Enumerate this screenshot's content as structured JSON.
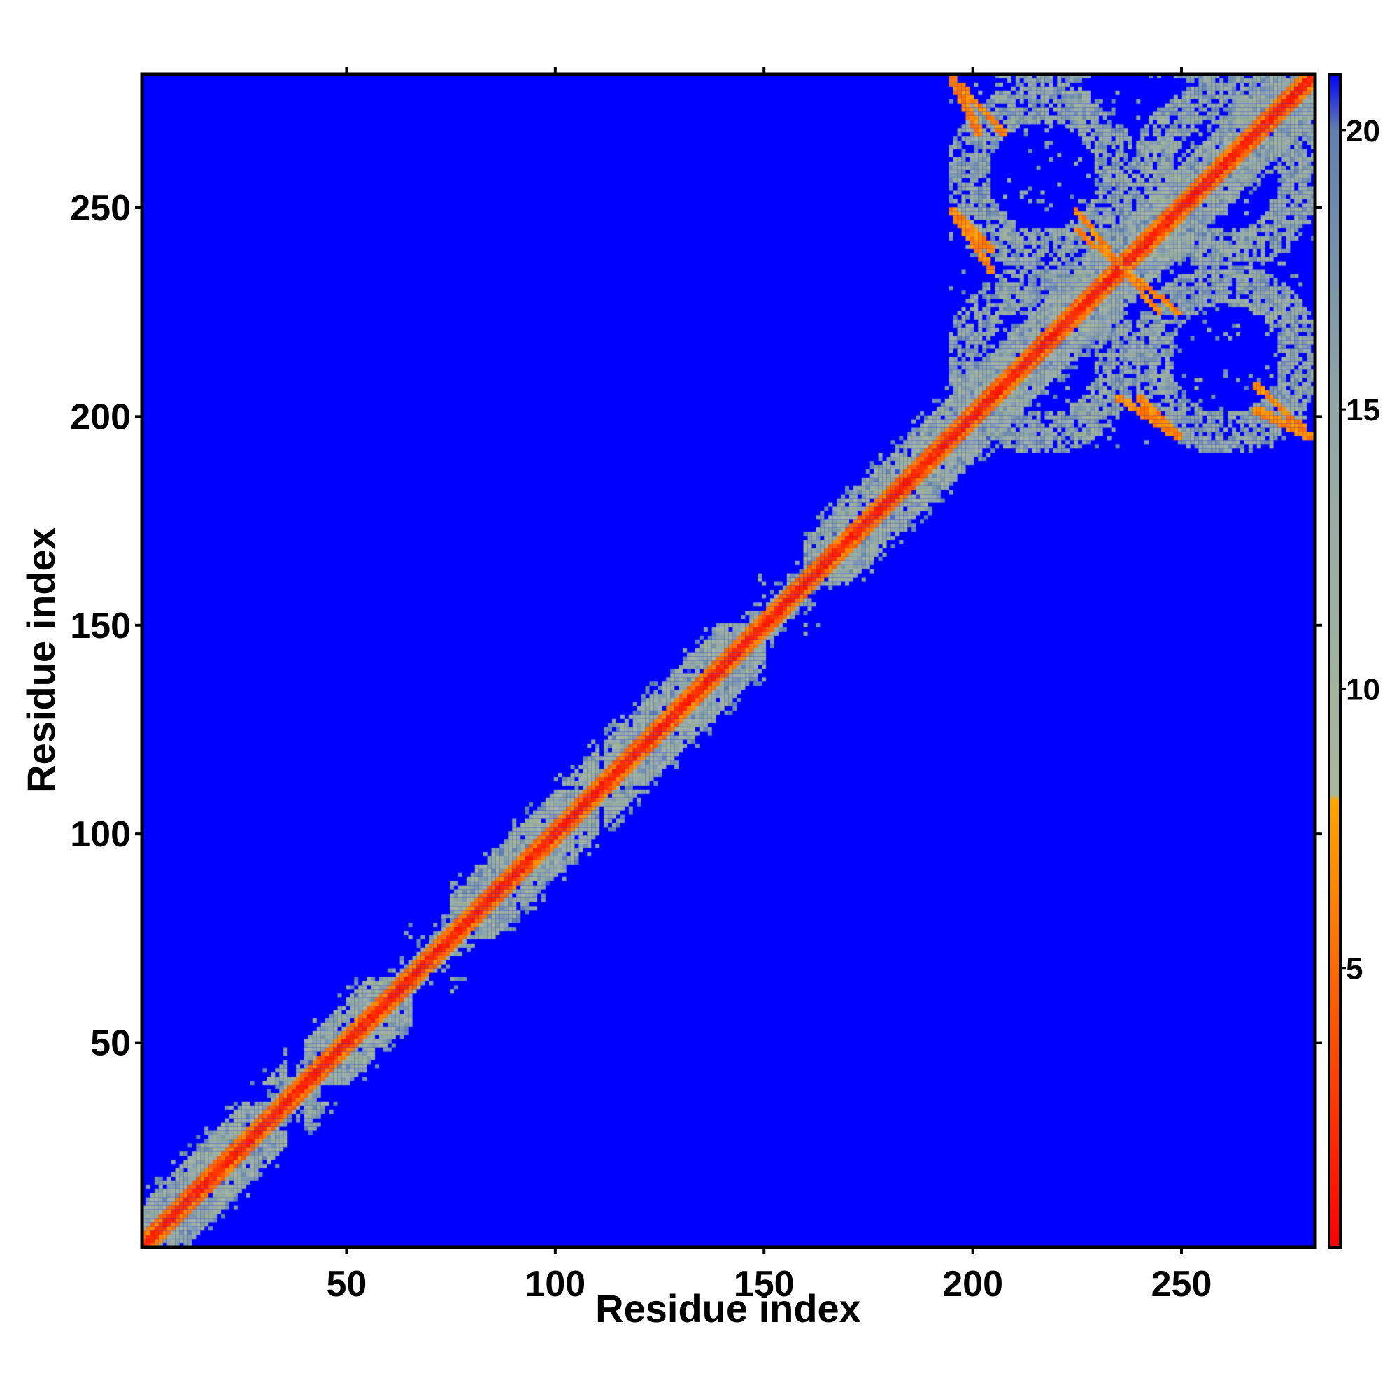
{
  "chart_data": {
    "type": "heatmap",
    "title": "",
    "xlabel": "Residue index",
    "ylabel": "Residue index",
    "n_residues": 282,
    "xlim": [
      1,
      282
    ],
    "ylim": [
      1,
      282
    ],
    "x_ticks": [
      50,
      100,
      150,
      200,
      250
    ],
    "y_ticks": [
      50,
      100,
      150,
      200,
      250
    ],
    "colorbar": {
      "range": [
        0,
        21
      ],
      "ticks": [
        5,
        10,
        15,
        20
      ],
      "colors": [
        {
          "value": 0,
          "color": "#ff0000"
        },
        {
          "value": 5,
          "color": "#ff6a00"
        },
        {
          "value": 8,
          "color": "#ffa500"
        },
        {
          "value": 8.1,
          "color": "#a8b89a"
        },
        {
          "value": 15,
          "color": "#90a8a8"
        },
        {
          "value": 20,
          "color": "#6080b0"
        },
        {
          "value": 21,
          "color": "#0000ff"
        }
      ]
    },
    "background_value": 21,
    "structure": {
      "helix_segments": [
        [
          1,
          12
        ],
        [
          12,
          35
        ],
        [
          40,
          65
        ],
        [
          75,
          110
        ],
        [
          112,
          150
        ],
        [
          160,
          190
        ],
        [
          190,
          282
        ]
      ],
      "contact_blocks": [
        {
          "x": [
            195,
            282
          ],
          "y": [
            192,
            282
          ]
        }
      ],
      "off_diagonal_contacts": [
        {
          "x": [
            197,
            208
          ],
          "y": [
            280,
            268
          ]
        },
        {
          "x": [
            195,
            205
          ],
          "y": [
            250,
            240
          ]
        },
        {
          "x": [
            225,
            245
          ],
          "y": [
            250,
            225
          ]
        },
        {
          "x": [
            235,
            250
          ],
          "y": [
            205,
            195
          ]
        },
        {
          "x": [
            268,
            282
          ],
          "y": [
            202,
            195
          ]
        }
      ]
    }
  }
}
